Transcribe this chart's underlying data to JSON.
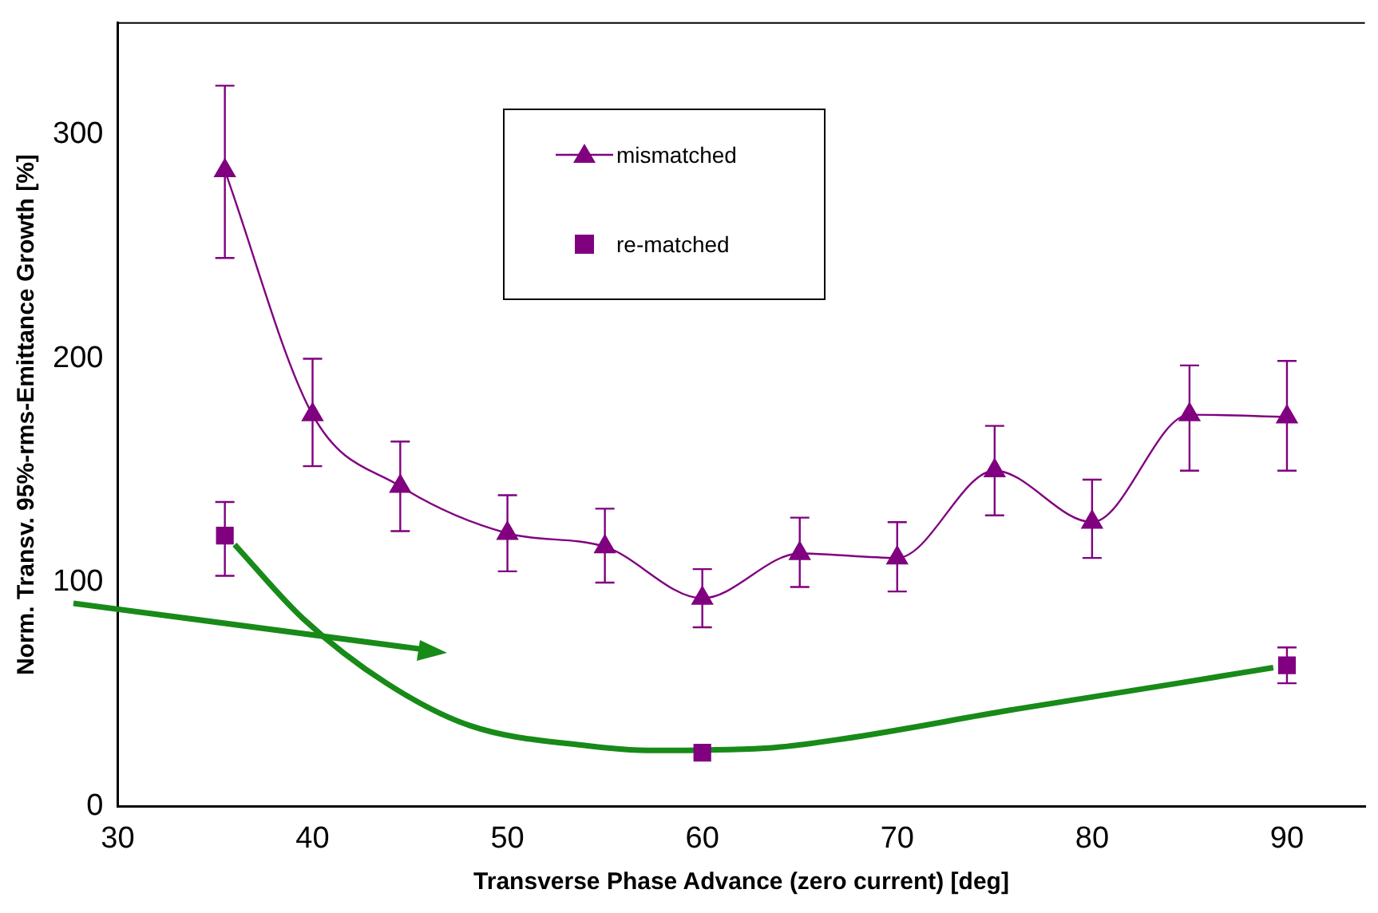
{
  "chart_data": {
    "type": "line",
    "xlabel": "Transverse Phase Advance (zero current) [deg]",
    "ylabel": "Norm. Transv. 95%-rms-Emittance Growth [%]",
    "xlim": [
      30,
      94
    ],
    "xticks": [
      30,
      40,
      50,
      60,
      70,
      80,
      90
    ],
    "ylim": [
      0,
      350
    ],
    "yticks": [
      0,
      100,
      200,
      300
    ],
    "grid": false,
    "legend": "top",
    "series": [
      {
        "name": "mismatched",
        "type": "line",
        "color": "#800080",
        "marker": "triangle",
        "x": [
          35.5,
          40,
          44.5,
          50,
          55,
          60,
          65,
          70,
          75,
          80,
          85,
          90
        ],
        "values": [
          284,
          175,
          143,
          122,
          116,
          93,
          113,
          111,
          150,
          127,
          175,
          174
        ],
        "errors": [
          [
            245,
            322
          ],
          [
            152,
            200
          ],
          [
            123,
            163
          ],
          [
            105,
            139
          ],
          [
            100,
            133
          ],
          [
            80,
            106
          ],
          [
            98,
            129
          ],
          [
            96,
            127
          ],
          [
            130,
            170
          ],
          [
            111,
            146
          ],
          [
            150,
            197
          ],
          [
            150,
            199
          ]
        ]
      },
      {
        "name": "re-matched",
        "type": "scatter",
        "color": "#800080",
        "marker": "square",
        "x": [
          35.5,
          60,
          90
        ],
        "values": [
          121,
          24,
          63
        ],
        "errors": [
          [
            103,
            136
          ],
          null,
          [
            55,
            71
          ]
        ]
      },
      {
        "type": "line",
        "color": "#188a18",
        "marker": "none",
        "x": [
          36,
          39.5,
          43.8,
          48.1,
          54.2,
          57.2,
          63.2,
          67.1,
          75.8,
          84.4,
          89.3
        ],
        "values": [
          117,
          84,
          55,
          36,
          27,
          25,
          26,
          30,
          43,
          55,
          62
        ]
      }
    ]
  }
}
